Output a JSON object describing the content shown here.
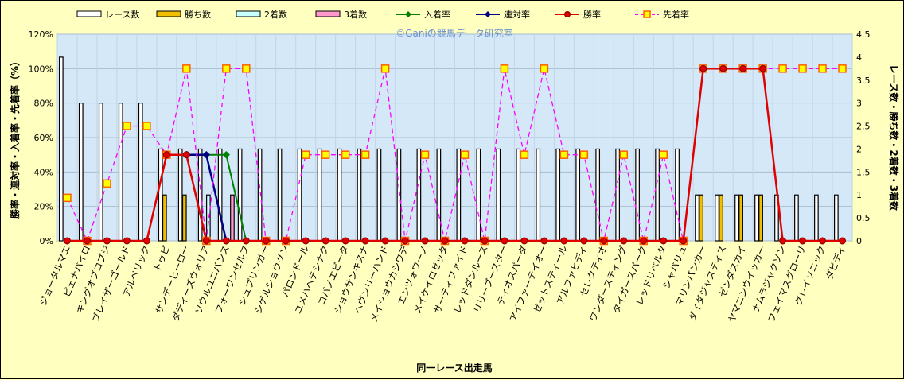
{
  "chart_data": {
    "type": "bar",
    "title": "",
    "watermark": "©Ganiの競馬データ研究室",
    "xlabel": "同一レース出走馬",
    "ylabel_left": "勝率・連対率・入着率・先着率（%）",
    "ylabel_right": "レース数・勝ち数・2着数・3着数",
    "ylim_left": [
      0,
      120
    ],
    "ylim_right": [
      0,
      4.5
    ],
    "yticks_left": [
      "0%",
      "20%",
      "40%",
      "60%",
      "80%",
      "100%",
      "120%"
    ],
    "yticks_right": [
      "0",
      "0.5",
      "1",
      "1.5",
      "2",
      "2.5",
      "3",
      "3.5",
      "4",
      "4.5"
    ],
    "grid": true,
    "legend_position": "top",
    "colors": {
      "races": "#ffffff",
      "wins": "#f0c000",
      "second": "#c8ffff",
      "third": "#ff99cc",
      "place_rate": "#008000",
      "quinella_rate": "#000080",
      "win_rate": "#e00000",
      "beat_rate": "#ff00ff",
      "plot_bg": "#d4e8f8",
      "chart_bg": "#ffffc0"
    },
    "categories": [
      "ジョータルマエ",
      "ピェナパイロ",
      "キングオブコブジ",
      "ブレイザーゴールド",
      "アルベリック",
      "トゥピ",
      "サンデーヒーロー",
      "ダディーズウォリア",
      "ソウルユニバンス",
      "フォーワンセルフ",
      "シュプリンガー",
      "シゲルショウグン",
      "パロンドール",
      "ユメハヘテシナク",
      "コパノエビータ",
      "ショウサンキスナ",
      "ヘヴンリーハンド",
      "メイショウカシワデ",
      "エンツォワーノ",
      "メイケイロゼッタ",
      "サーティファイド",
      "レッドダンルース",
      "リリーブースター",
      "ティオスパーダ",
      "アイファーテイオー",
      "ゼットスティール",
      "アルファヒディ",
      "セレクティオ",
      "ワンダースティング",
      "タイガースパーク",
      "レッドリベルタ",
      "シャパリュ",
      "マリンバンカー",
      "ダイダジャスティス",
      "ゼンダスカイ",
      "ヤマニンウイッカー",
      "ナムラジャクソン",
      "フェイマスグローリ",
      "グレイソニック",
      "ダビディ"
    ],
    "series": [
      {
        "name": "レース数",
        "type": "bar",
        "axis": "right",
        "values": [
          4,
          3,
          3,
          3,
          3,
          2,
          2,
          2,
          2,
          2,
          2,
          2,
          2,
          2,
          2,
          2,
          2,
          2,
          2,
          2,
          2,
          2,
          2,
          2,
          2,
          2,
          2,
          2,
          2,
          2,
          2,
          2,
          1,
          1,
          1,
          1,
          1,
          1,
          1,
          1
        ]
      },
      {
        "name": "勝ち数",
        "type": "bar",
        "axis": "right",
        "values": [
          0,
          0,
          0,
          0,
          0,
          1,
          1,
          0,
          0,
          0,
          0,
          0,
          0,
          0,
          0,
          0,
          0,
          0,
          0,
          0,
          0,
          0,
          0,
          0,
          0,
          0,
          0,
          0,
          0,
          0,
          0,
          0,
          1,
          1,
          1,
          1,
          0,
          0,
          0,
          0
        ]
      },
      {
        "name": "2着数",
        "type": "bar",
        "axis": "right",
        "values": [
          0,
          0,
          0,
          0,
          0,
          0,
          0,
          1,
          0,
          0,
          0,
          0,
          0,
          0,
          0,
          0,
          0,
          0,
          0,
          0,
          0,
          0,
          0,
          0,
          0,
          0,
          0,
          0,
          0,
          0,
          0,
          0,
          0,
          0,
          0,
          0,
          0,
          0,
          0,
          0
        ]
      },
      {
        "name": "3着数",
        "type": "bar",
        "axis": "right",
        "values": [
          0,
          0,
          0,
          0,
          0,
          0,
          0,
          0,
          1,
          0,
          0,
          0,
          0,
          0,
          0,
          0,
          0,
          0,
          0,
          0,
          0,
          0,
          0,
          0,
          0,
          0,
          0,
          0,
          0,
          0,
          0,
          0,
          0,
          0,
          0,
          0,
          0,
          0,
          0,
          0
        ]
      },
      {
        "name": "入着率",
        "type": "line",
        "axis": "left",
        "values": [
          null,
          null,
          null,
          null,
          null,
          null,
          null,
          50,
          50,
          0,
          null,
          null,
          null,
          null,
          null,
          null,
          null,
          null,
          null,
          null,
          null,
          null,
          null,
          null,
          null,
          null,
          null,
          null,
          null,
          null,
          null,
          null,
          null,
          null,
          null,
          null,
          null,
          null,
          null,
          null
        ]
      },
      {
        "name": "連対率",
        "type": "line",
        "axis": "left",
        "values": [
          null,
          null,
          null,
          null,
          null,
          null,
          50,
          50,
          0,
          null,
          null,
          null,
          null,
          null,
          null,
          null,
          null,
          null,
          null,
          null,
          null,
          null,
          null,
          null,
          null,
          null,
          null,
          null,
          null,
          null,
          null,
          null,
          null,
          null,
          null,
          null,
          null,
          null,
          null,
          null
        ]
      },
      {
        "name": "勝率",
        "type": "line",
        "axis": "left",
        "values": [
          0,
          0,
          0,
          0,
          0,
          50,
          50,
          0,
          0,
          0,
          0,
          0,
          0,
          0,
          0,
          0,
          0,
          0,
          0,
          0,
          0,
          0,
          0,
          0,
          0,
          0,
          0,
          0,
          0,
          0,
          0,
          0,
          100,
          100,
          100,
          100,
          0,
          0,
          0,
          0
        ]
      },
      {
        "name": "先着率",
        "type": "line",
        "axis": "left",
        "values": [
          25,
          0,
          33.3,
          66.7,
          66.7,
          50,
          100,
          0,
          100,
          100,
          0,
          0,
          50,
          50,
          50,
          50,
          100,
          0,
          50,
          0,
          50,
          0,
          100,
          50,
          100,
          50,
          50,
          0,
          50,
          0,
          50,
          0,
          100,
          100,
          100,
          100,
          100,
          100,
          100,
          100
        ]
      }
    ]
  }
}
